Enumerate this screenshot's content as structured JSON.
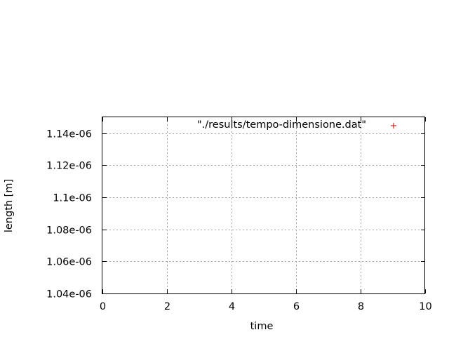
{
  "chart_data": {
    "type": "scatter",
    "xlabel": "time",
    "ylabel": "length [m]",
    "xlim": [
      0,
      10
    ],
    "ylim": [
      1.04e-06,
      1.15e-06
    ],
    "grid": true,
    "legend_position": "top-right",
    "x_ticks": [
      {
        "value": 0,
        "label": "0"
      },
      {
        "value": 2,
        "label": "2"
      },
      {
        "value": 4,
        "label": "4"
      },
      {
        "value": 6,
        "label": "6"
      },
      {
        "value": 8,
        "label": "8"
      },
      {
        "value": 10,
        "label": "10"
      }
    ],
    "y_ticks": [
      {
        "value": 1.04e-06,
        "label": "1.04e-06"
      },
      {
        "value": 1.06e-06,
        "label": "1.06e-06"
      },
      {
        "value": 1.08e-06,
        "label": "1.08e-06"
      },
      {
        "value": 1.1e-06,
        "label": "1.1e-06"
      },
      {
        "value": 1.12e-06,
        "label": "1.12e-06"
      },
      {
        "value": 1.14e-06,
        "label": "1.14e-06"
      }
    ],
    "series": [
      {
        "name": "\"./results/tempo-dimensione.dat\"",
        "color": "#c00000",
        "marker": "plus",
        "points": []
      }
    ]
  }
}
